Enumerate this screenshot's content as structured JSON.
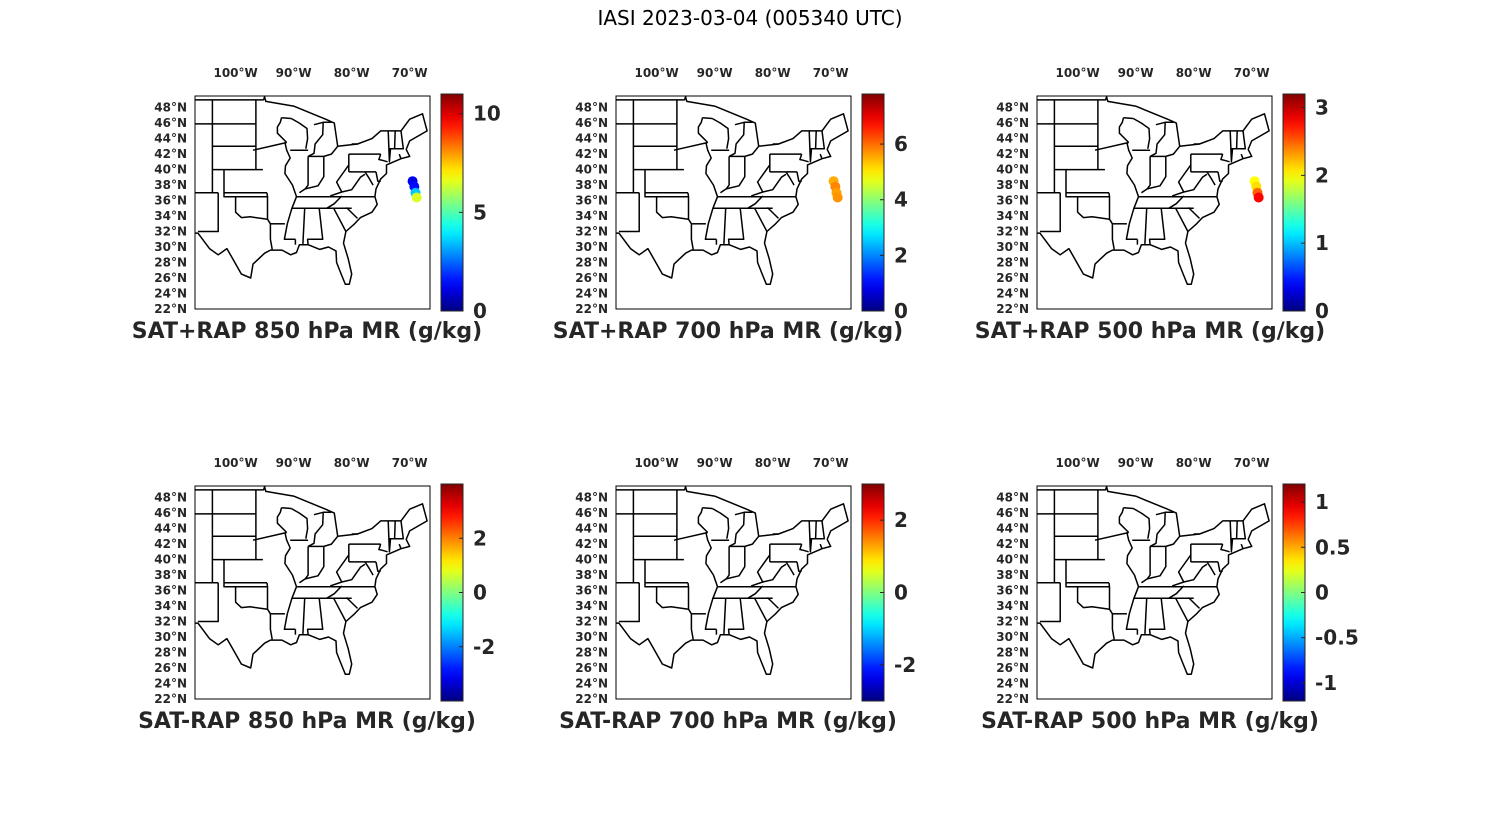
{
  "figure": {
    "title": "IASI 2023-03-04 (005340 UTC)"
  },
  "map": {
    "lon_ticks": [
      "100°W",
      "90°W",
      "80°W",
      "70°W"
    ],
    "lat_ticks": [
      "48°N",
      "46°N",
      "44°N",
      "42°N",
      "40°N",
      "38°N",
      "36°N",
      "34°N",
      "32°N",
      "30°N",
      "28°N",
      "26°N",
      "24°N",
      "22°N"
    ],
    "colormap": "jet"
  },
  "panels": [
    {
      "title": "SAT+RAP 850 hPa MR (g/kg)",
      "clim": [
        0,
        11
      ],
      "ticks": [
        "0",
        "5",
        "10"
      ],
      "tick_values": [
        0,
        5,
        10
      ],
      "swath": [
        {
          "lon": -69.5,
          "lat": 38.5,
          "v": 1.2
        },
        {
          "lon": -69.2,
          "lat": 37.8,
          "v": 1.5
        },
        {
          "lon": -69.0,
          "lat": 37.0,
          "v": 3.5
        },
        {
          "lon": -68.8,
          "lat": 36.4,
          "v": 6.5
        }
      ]
    },
    {
      "title": "SAT+RAP 700 hPa MR (g/kg)",
      "clim": [
        0,
        7.8
      ],
      "ticks": [
        "0",
        "2",
        "4",
        "6"
      ],
      "tick_values": [
        0,
        2,
        4,
        6
      ],
      "swath": [
        {
          "lon": -69.5,
          "lat": 38.5,
          "v": 5.5
        },
        {
          "lon": -69.2,
          "lat": 37.8,
          "v": 5.8
        },
        {
          "lon": -69.0,
          "lat": 37.0,
          "v": 5.6
        },
        {
          "lon": -68.8,
          "lat": 36.4,
          "v": 5.7
        }
      ]
    },
    {
      "title": "SAT+RAP 500 hPa MR (g/kg)",
      "clim": [
        0,
        3.2
      ],
      "ticks": [
        "0",
        "1",
        "2",
        "3"
      ],
      "tick_values": [
        0,
        1,
        2,
        3
      ],
      "swath": [
        {
          "lon": -69.5,
          "lat": 38.5,
          "v": 2.0
        },
        {
          "lon": -69.2,
          "lat": 37.8,
          "v": 2.1
        },
        {
          "lon": -69.0,
          "lat": 37.0,
          "v": 2.5
        },
        {
          "lon": -68.8,
          "lat": 36.4,
          "v": 2.8
        }
      ]
    },
    {
      "title": "SAT-RAP 850 hPa MR (g/kg)",
      "clim": [
        -4,
        4
      ],
      "ticks": [
        "-2",
        "0",
        "2"
      ],
      "tick_values": [
        -2,
        0,
        2
      ],
      "swath": []
    },
    {
      "title": "SAT-RAP 700 hPa MR (g/kg)",
      "clim": [
        -3,
        3
      ],
      "ticks": [
        "-2",
        "0",
        "2"
      ],
      "tick_values": [
        -2,
        0,
        2
      ],
      "swath": []
    },
    {
      "title": "SAT-RAP 500 hPa MR (g/kg)",
      "clim": [
        -1.2,
        1.2
      ],
      "ticks": [
        "-1",
        "-0.5",
        "0",
        "0.5",
        "1"
      ],
      "tick_values": [
        -1,
        -0.5,
        0,
        0.5,
        1
      ],
      "swath": []
    }
  ]
}
